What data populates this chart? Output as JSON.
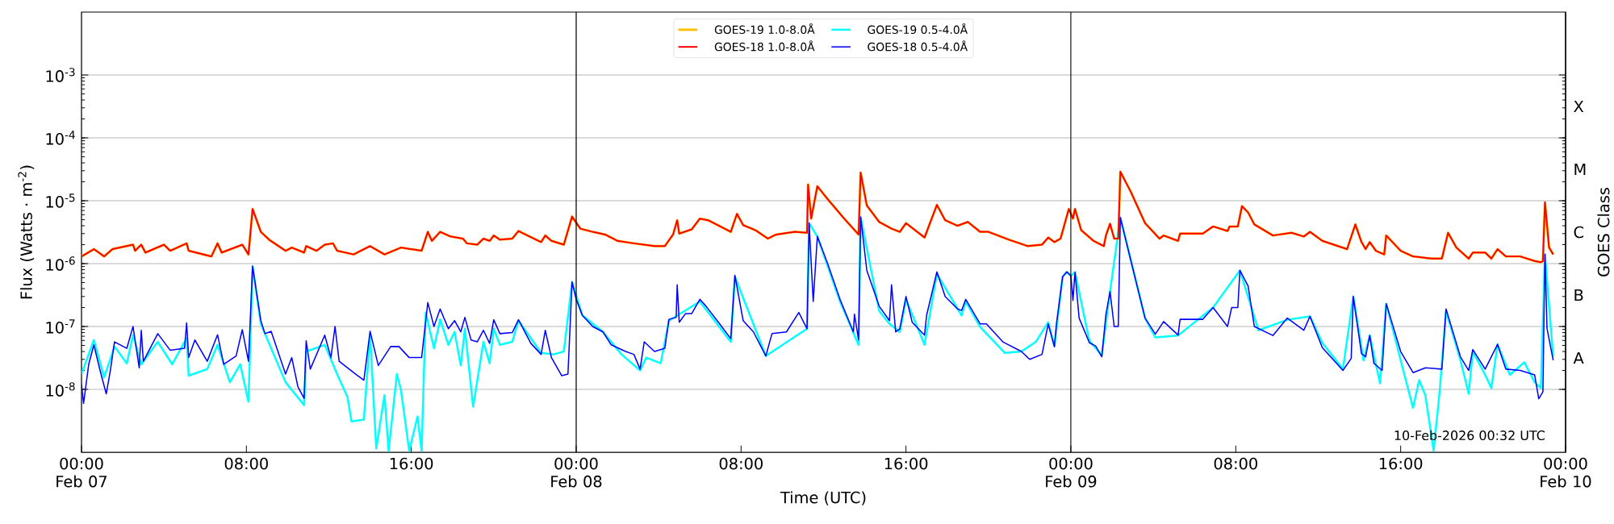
{
  "chart_data": {
    "type": "line",
    "xlabel": "Time (UTC)",
    "ylabel": "Flux (Watts · m$^{-2}$)",
    "y2label": "GOES Class",
    "log": true,
    "grid": "y",
    "legend": "top",
    "line_style": "solid",
    "marker": "none",
    "xlim": [
      "2026-02-07T00:00",
      "2026-02-10T00:00"
    ],
    "ylim": [
      1e-09,
      0.01
    ],
    "xticks": [
      {
        "value": "2026-02-07T00:00",
        "label": "00:00 Feb 07"
      },
      {
        "value": "2026-02-07T08:00",
        "label": "08:00"
      },
      {
        "value": "2026-02-07T16:00",
        "label": "16:00"
      },
      {
        "value": "2026-02-08T00:00",
        "label": "00:00 Feb 08"
      },
      {
        "value": "2026-02-08T08:00",
        "label": "08:00"
      },
      {
        "value": "2026-02-08T16:00",
        "label": "16:00"
      },
      {
        "value": "2026-02-09T00:00",
        "label": "00:00 Feb 09"
      },
      {
        "value": "2026-02-09T08:00",
        "label": "08:00"
      },
      {
        "value": "2026-02-09T16:00",
        "label": "16:00"
      },
      {
        "value": "2026-02-10T00:00",
        "label": "00:00 Feb 10"
      }
    ],
    "yticks": [
      {
        "value": 1e-08,
        "label": "10$^{-8}$"
      },
      {
        "value": 1e-07,
        "label": "10$^{-7}$"
      },
      {
        "value": 1e-06,
        "label": "10$^{-6}$"
      },
      {
        "value": 1e-05,
        "label": "10$^{-5}$"
      },
      {
        "value": 0.0001,
        "label": "10$^{-4}$"
      },
      {
        "value": 0.001,
        "label": "10$^{-3}$"
      }
    ],
    "ref_lines": [
      {
        "axis": "x",
        "value": "2026-02-08T00:00",
        "color": "#000000"
      },
      {
        "axis": "x",
        "value": "2026-02-09T00:00",
        "color": "#000000"
      }
    ],
    "annotations": [
      "10-Feb-2026 00:32 UTC"
    ],
    "y2_categories": [
      null,
      "X",
      "M",
      "C",
      "B",
      "A",
      null
    ],
    "x": [
      "2026-02-07T00:00",
      "2026-02-07T00:36",
      "2026-02-07T01:06",
      "2026-02-07T01:30",
      "2026-02-07T02:30",
      "2026-02-07T02:36",
      "2026-02-07T02:54",
      "2026-02-07T03:06",
      "2026-02-07T04:00",
      "2026-02-07T04:18",
      "2026-02-07T05:06",
      "2026-02-07T05:12",
      "2026-02-07T06:18",
      "2026-02-07T06:36",
      "2026-02-07T06:48",
      "2026-02-07T07:48",
      "2026-02-07T08:06",
      "2026-02-07T08:18",
      "2026-02-07T08:42",
      "2026-02-07T09:06",
      "2026-02-07T09:54",
      "2026-02-07T10:12",
      "2026-02-07T10:48",
      "2026-02-07T10:54",
      "2026-02-07T11:24",
      "2026-02-07T11:48",
      "2026-02-07T12:12",
      "2026-02-07T12:24",
      "2026-02-07T13:12",
      "2026-02-07T14:00",
      "2026-02-07T14:42",
      "2026-02-07T15:30",
      "2026-02-07T16:30",
      "2026-02-07T16:48",
      "2026-02-07T17:00",
      "2026-02-07T17:24",
      "2026-02-07T17:54",
      "2026-02-07T18:30",
      "2026-02-07T18:42",
      "2026-02-07T19:12",
      "2026-02-07T19:30",
      "2026-02-07T19:48",
      "2026-02-07T20:00",
      "2026-02-07T20:18",
      "2026-02-07T20:54",
      "2026-02-07T21:12",
      "2026-02-07T22:18",
      "2026-02-07T22:30",
      "2026-02-07T22:48",
      "2026-02-07T23:24",
      "2026-02-07T23:48",
      "2026-02-08T00:12",
      "2026-02-08T00:48",
      "2026-02-08T01:24",
      "2026-02-08T02:00",
      "2026-02-08T02:48",
      "2026-02-08T03:48",
      "2026-02-08T04:18",
      "2026-02-08T04:42",
      "2026-02-08T04:54",
      "2026-02-08T05:00",
      "2026-02-08T05:36",
      "2026-02-08T06:00",
      "2026-02-08T06:24",
      "2026-02-08T07:12",
      "2026-02-08T07:30",
      "2026-02-08T07:48",
      "2026-02-08T08:06",
      "2026-02-08T08:42",
      "2026-02-08T09:18",
      "2026-02-08T09:42",
      "2026-02-08T10:36",
      "2026-02-08T11:12",
      "2026-02-08T11:15",
      "2026-02-08T11:24",
      "2026-02-08T11:42",
      "2026-02-08T12:12",
      "2026-02-08T13:00",
      "2026-02-08T13:42",
      "2026-02-08T13:48",
      "2026-02-08T14:06",
      "2026-02-08T14:42",
      "2026-02-08T15:18",
      "2026-02-08T15:42",
      "2026-02-08T16:00",
      "2026-02-08T16:54",
      "2026-02-08T17:30",
      "2026-02-08T17:54",
      "2026-02-08T18:30",
      "2026-02-08T19:00",
      "2026-02-08T19:36",
      "2026-02-08T20:00",
      "2026-02-08T21:00",
      "2026-02-08T21:54",
      "2026-02-08T22:36",
      "2026-02-08T22:54",
      "2026-02-08T23:12",
      "2026-02-08T23:30",
      "2026-02-08T23:54",
      "2026-02-09T00:06",
      "2026-02-09T00:12",
      "2026-02-09T00:30",
      "2026-02-09T01:06",
      "2026-02-09T01:36",
      "2026-02-09T01:42",
      "2026-02-09T01:54",
      "2026-02-09T02:06",
      "2026-02-09T02:18",
      "2026-02-09T02:24",
      "2026-02-09T02:54",
      "2026-02-09T03:36",
      "2026-02-09T04:18",
      "2026-02-09T04:30",
      "2026-02-09T05:12",
      "2026-02-09T05:18",
      "2026-02-09T06:24",
      "2026-02-09T06:54",
      "2026-02-09T07:36",
      "2026-02-09T07:42",
      "2026-02-09T08:06",
      "2026-02-09T08:18",
      "2026-02-09T08:36",
      "2026-02-09T08:54",
      "2026-02-09T09:48",
      "2026-02-09T10:42",
      "2026-02-09T11:18",
      "2026-02-09T11:36",
      "2026-02-09T12:12",
      "2026-02-09T13:24",
      "2026-02-09T13:48",
      "2026-02-09T14:06",
      "2026-02-09T14:18",
      "2026-02-09T14:30",
      "2026-02-09T14:48",
      "2026-02-09T15:12",
      "2026-02-09T15:18",
      "2026-02-09T16:00",
      "2026-02-09T16:36",
      "2026-02-09T17:30",
      "2026-02-09T18:00",
      "2026-02-09T18:18",
      "2026-02-09T18:42",
      "2026-02-09T19:18",
      "2026-02-09T19:30",
      "2026-02-09T20:06",
      "2026-02-09T20:24",
      "2026-02-09T20:42",
      "2026-02-09T21:06",
      "2026-02-09T21:48",
      "2026-02-09T22:30",
      "2026-02-09T22:48",
      "2026-02-09T22:54",
      "2026-02-09T23:00",
      "2026-02-09T23:12",
      "2026-02-09T23:24"
    ],
    "series": [
      {
        "name": "GOES-19 1.0-8.0Å",
        "color": "#ffc000",
        "values": [
          1.3e-06,
          1.7e-06,
          1.3e-06,
          1.7e-06,
          2e-06,
          1.6e-06,
          2e-06,
          1.5e-06,
          2e-06,
          1.6e-06,
          2.1e-06,
          1.6e-06,
          1.3e-06,
          2.1e-06,
          1.5e-06,
          2e-06,
          1.4e-06,
          7.4e-06,
          3.2e-06,
          2.4e-06,
          1.6e-06,
          1.8e-06,
          1.5e-06,
          1.9e-06,
          1.6e-06,
          2e-06,
          2.1e-06,
          1.6e-06,
          1.4e-06,
          1.9e-06,
          1.4e-06,
          1.8e-06,
          1.6e-06,
          3.2e-06,
          2.3e-06,
          3.2e-06,
          2.7e-06,
          2.5e-06,
          2.1e-06,
          2e-06,
          2.5e-06,
          2.3e-06,
          2.8e-06,
          2.4e-06,
          2.5e-06,
          3.3e-06,
          2.2e-06,
          2.8e-06,
          2.3e-06,
          2e-06,
          5.6e-06,
          3.6e-06,
          3.2e-06,
          2.9e-06,
          2.3e-06,
          2.1e-06,
          1.9e-06,
          1.9e-06,
          2.9e-06,
          4.9e-06,
          3e-06,
          3.5e-06,
          5.2e-06,
          4.9e-06,
          3.6e-06,
          3.2e-06,
          6.2e-06,
          4.1e-06,
          3.4e-06,
          2.5e-06,
          2.9e-06,
          3.2e-06,
          3.1e-06,
          1.8e-05,
          5.2e-06,
          1.7e-05,
          1.06e-05,
          5.2e-06,
          2.9e-06,
          2.8e-05,
          8.4e-06,
          4.6e-06,
          3.6e-06,
          3.2e-06,
          4.4e-06,
          2.6e-06,
          8.6e-06,
          4.9e-06,
          4e-06,
          4.6e-06,
          3.2e-06,
          3.2e-06,
          2.4e-06,
          1.9e-06,
          2e-06,
          2.6e-06,
          2.2e-06,
          2.5e-06,
          7.4e-06,
          5.2e-06,
          7.4e-06,
          3.4e-06,
          2.3e-06,
          1.9e-06,
          2.8e-06,
          4.3e-06,
          2.5e-06,
          2.5e-06,
          2.9e-05,
          1.4e-05,
          4.4e-06,
          2.5e-06,
          2.8e-06,
          2.3e-06,
          3e-06,
          3e-06,
          3.9e-06,
          3.3e-06,
          3.9e-06,
          3.9e-06,
          8.2e-06,
          6.5e-06,
          4.2e-06,
          2.8e-06,
          3.1e-06,
          2.7e-06,
          3.2e-06,
          2.3e-06,
          1.7e-06,
          4.2e-06,
          2.2e-06,
          1.7e-06,
          2.2e-06,
          1.6e-06,
          1.4e-06,
          2.8e-06,
          1.6e-06,
          1.3e-06,
          1.2e-06,
          1.2e-06,
          3.1e-06,
          1.8e-06,
          1.2e-06,
          1.5e-06,
          1.5e-06,
          1.2e-06,
          1.7e-06,
          1.3e-06,
          1.3e-06,
          1.1e-06,
          1.05e-06,
          1.1e-06,
          9.4e-06,
          1.8e-06,
          1.4e-06
        ]
      },
      {
        "name": "GOES-19 0.5-4.0Å",
        "color": "#00ffff",
        "x": [
          "2026-02-07T00:00",
          "2026-02-07T00:36",
          "2026-02-07T01:06",
          "2026-02-07T01:36",
          "2026-02-07T02:12",
          "2026-02-07T02:30",
          "2026-02-07T02:54",
          "2026-02-07T03:42",
          "2026-02-07T04:24",
          "2026-02-07T05:06",
          "2026-02-07T05:12",
          "2026-02-07T06:06",
          "2026-02-07T06:36",
          "2026-02-07T07:12",
          "2026-02-07T07:42",
          "2026-02-07T08:06",
          "2026-02-07T08:18",
          "2026-02-07T08:42",
          "2026-02-07T09:54",
          "2026-02-07T10:48",
          "2026-02-07T10:54",
          "2026-02-07T11:48",
          "2026-02-07T12:24",
          "2026-02-07T12:54",
          "2026-02-07T13:06",
          "2026-02-07T13:42",
          "2026-02-07T14:00",
          "2026-02-07T14:18",
          "2026-02-07T14:42",
          "2026-02-07T14:54",
          "2026-02-07T15:18",
          "2026-02-07T15:30",
          "2026-02-07T15:54",
          "2026-02-07T16:18",
          "2026-02-07T16:30",
          "2026-02-07T16:42",
          "2026-02-07T17:06",
          "2026-02-07T17:24",
          "2026-02-07T17:48",
          "2026-02-07T18:06",
          "2026-02-07T18:24",
          "2026-02-07T18:36",
          "2026-02-07T19:00",
          "2026-02-07T19:30",
          "2026-02-07T19:48",
          "2026-02-07T20:00",
          "2026-02-07T20:18",
          "2026-02-07T20:54",
          "2026-02-07T21:12",
          "2026-02-07T22:18",
          "2026-02-07T22:54",
          "2026-02-07T23:24",
          "2026-02-07T23:48",
          "2026-02-08T00:18",
          "2026-02-08T01:18",
          "2026-02-08T02:12",
          "2026-02-08T03:06",
          "2026-02-08T03:24",
          "2026-02-08T04:06",
          "2026-02-08T04:30",
          "2026-02-08T06:00",
          "2026-02-08T07:30",
          "2026-02-08T07:42",
          "2026-02-08T09:12",
          "2026-02-08T11:12",
          "2026-02-08T11:18",
          "2026-02-08T11:42",
          "2026-02-08T12:48",
          "2026-02-08T13:42",
          "2026-02-08T13:48",
          "2026-02-08T14:42",
          "2026-02-08T15:12",
          "2026-02-08T15:42",
          "2026-02-08T16:00",
          "2026-02-08T16:54",
          "2026-02-08T17:30",
          "2026-02-08T18:42",
          "2026-02-08T18:54",
          "2026-02-08T19:36",
          "2026-02-08T20:48",
          "2026-02-08T21:36",
          "2026-02-08T22:18",
          "2026-02-08T22:54",
          "2026-02-08T23:12",
          "2026-02-08T23:36",
          "2026-02-08T23:48",
          "2026-02-09T00:00",
          "2026-02-09T00:12",
          "2026-02-09T00:54",
          "2026-02-09T01:30",
          "2026-02-09T01:54",
          "2026-02-09T02:24",
          "2026-02-09T03:36",
          "2026-02-09T04:06",
          "2026-02-09T05:12",
          "2026-02-09T06:54",
          "2026-02-09T08:12",
          "2026-02-09T09:06",
          "2026-02-09T10:30",
          "2026-02-09T11:36",
          "2026-02-09T12:12",
          "2026-02-09T13:12",
          "2026-02-09T13:42",
          "2026-02-09T14:12",
          "2026-02-09T14:30",
          "2026-02-09T15:00",
          "2026-02-09T15:18",
          "2026-02-09T16:00",
          "2026-02-09T16:36",
          "2026-02-09T16:54",
          "2026-02-09T17:12",
          "2026-02-09T17:36",
          "2026-02-09T17:54",
          "2026-02-09T18:12",
          "2026-02-09T18:54",
          "2026-02-09T19:18",
          "2026-02-09T19:30",
          "2026-02-09T20:06",
          "2026-02-09T20:24",
          "2026-02-09T20:42",
          "2026-02-09T21:18",
          "2026-02-09T22:00",
          "2026-02-09T22:30",
          "2026-02-09T22:48",
          "2026-02-09T23:00",
          "2026-02-09T23:24"
        ],
        "values": [
          1.75e-08,
          6.1e-08,
          1.55e-08,
          4.8e-08,
          2.6e-08,
          7.3e-08,
          2.5e-08,
          5.7e-08,
          2.5e-08,
          6.5e-08,
          1.65e-08,
          2.1e-08,
          5.1e-08,
          1.3e-08,
          2.5e-08,
          6.4e-09,
          9.1e-07,
          1.1e-07,
          1.3e-08,
          5.6e-09,
          4e-08,
          5.1e-08,
          1.75e-08,
          7.6e-09,
          3.1e-09,
          3.3e-09,
          7.3e-08,
          1.15e-09,
          8.1e-09,
          1.05e-09,
          1.75e-08,
          9.7e-09,
          1.05e-09,
          3.7e-09,
          1.05e-09,
          1.67e-07,
          4.5e-08,
          1.3e-07,
          5.1e-08,
          8.2e-08,
          2.4e-08,
          9.2e-08,
          5.3e-09,
          5.7e-08,
          2.6e-08,
          9.2e-08,
          5.1e-08,
          5.7e-08,
          1.24e-07,
          3.8e-08,
          3.6e-08,
          4e-08,
          5.1e-07,
          1.5e-07,
          8.2e-08,
          3.6e-08,
          2e-08,
          3.2e-08,
          2.6e-08,
          1.24e-07,
          2.5e-07,
          5.7e-08,
          6.2e-07,
          3.4e-08,
          9.2e-08,
          4.4e-06,
          2.7e-06,
          2.5e-07,
          5.1e-08,
          5.5e-06,
          1.77e-07,
          1.1e-07,
          8.2e-08,
          2.7e-07,
          5.1e-08,
          6.9e-07,
          1.5e-07,
          2.5e-07,
          9.8e-08,
          3.8e-08,
          4e-08,
          5.7e-08,
          1.17e-07,
          4.8e-08,
          6.2e-07,
          7.4e-07,
          6.4e-07,
          7.3e-07,
          5.9e-08,
          3.5e-08,
          3.6e-07,
          5.4e-06,
          1.36e-07,
          6.7e-08,
          7.2e-08,
          2e-07,
          7.8e-07,
          8.7e-08,
          1.28e-07,
          1.45e-07,
          5.5e-08,
          2.1e-08,
          3e-07,
          2.9e-08,
          7.2e-08,
          1.25e-08,
          2.3e-07,
          2.9e-08,
          5.1e-09,
          1.4e-08,
          8e-09,
          1.05e-09,
          1e-08,
          1.76e-07,
          2.9e-08,
          8.5e-09,
          4e-08,
          1.7e-08,
          1.05e-08,
          5.2e-08,
          1.7e-08,
          2.7e-08,
          1.3e-08,
          1.05e-08,
          1.4e-06,
          3.3e-08
        ]
      },
      {
        "name": "GOES-18 1.0-8.0Å",
        "color": "#ff0000",
        "values": [
          1.3e-06,
          1.7e-06,
          1.3e-06,
          1.7e-06,
          2e-06,
          1.6e-06,
          2e-06,
          1.5e-06,
          2e-06,
          1.6e-06,
          2.1e-06,
          1.6e-06,
          1.3e-06,
          2.1e-06,
          1.5e-06,
          2e-06,
          1.4e-06,
          7.4e-06,
          3.2e-06,
          2.4e-06,
          1.6e-06,
          1.8e-06,
          1.5e-06,
          1.9e-06,
          1.6e-06,
          2e-06,
          2.1e-06,
          1.6e-06,
          1.4e-06,
          1.9e-06,
          1.4e-06,
          1.8e-06,
          1.6e-06,
          3.2e-06,
          2.3e-06,
          3.2e-06,
          2.7e-06,
          2.5e-06,
          2.1e-06,
          2e-06,
          2.5e-06,
          2.3e-06,
          2.8e-06,
          2.4e-06,
          2.5e-06,
          3.3e-06,
          2.2e-06,
          2.8e-06,
          2.3e-06,
          2e-06,
          5.6e-06,
          3.6e-06,
          3.2e-06,
          2.9e-06,
          2.3e-06,
          2.1e-06,
          1.9e-06,
          1.9e-06,
          2.9e-06,
          4.9e-06,
          3e-06,
          3.5e-06,
          5.2e-06,
          4.9e-06,
          3.6e-06,
          3.2e-06,
          6.2e-06,
          4.1e-06,
          3.4e-06,
          2.5e-06,
          2.9e-06,
          3.2e-06,
          3.1e-06,
          1.8e-05,
          5.2e-06,
          1.7e-05,
          1.06e-05,
          5.2e-06,
          2.9e-06,
          2.8e-05,
          8.4e-06,
          4.6e-06,
          3.6e-06,
          3.2e-06,
          4.4e-06,
          2.6e-06,
          8.6e-06,
          4.9e-06,
          4e-06,
          4.6e-06,
          3.2e-06,
          3.2e-06,
          2.4e-06,
          1.9e-06,
          2e-06,
          2.6e-06,
          2.2e-06,
          2.5e-06,
          7.4e-06,
          5.2e-06,
          7.4e-06,
          3.4e-06,
          2.3e-06,
          1.9e-06,
          2.8e-06,
          4.3e-06,
          2.5e-06,
          2.5e-06,
          2.9e-05,
          1.4e-05,
          4.4e-06,
          2.5e-06,
          2.8e-06,
          2.3e-06,
          3e-06,
          3e-06,
          3.9e-06,
          3.3e-06,
          3.9e-06,
          3.9e-06,
          8.2e-06,
          6.5e-06,
          4.2e-06,
          2.8e-06,
          3.1e-06,
          2.7e-06,
          3.2e-06,
          2.3e-06,
          1.7e-06,
          4.2e-06,
          2.2e-06,
          1.7e-06,
          2.2e-06,
          1.6e-06,
          1.4e-06,
          2.8e-06,
          1.6e-06,
          1.3e-06,
          1.2e-06,
          1.2e-06,
          3.1e-06,
          1.8e-06,
          1.2e-06,
          1.5e-06,
          1.5e-06,
          1.2e-06,
          1.7e-06,
          1.3e-06,
          1.3e-06,
          1.1e-06,
          1.05e-06,
          1.1e-06,
          9.4e-06,
          1.8e-06,
          1.4e-06
        ]
      },
      {
        "name": "GOES-18 0.5-4.0Å",
        "color": "#0000ff",
        "x": [
          "2026-02-07T00:00",
          "2026-02-07T00:06",
          "2026-02-07T00:21",
          "2026-02-07T00:36",
          "2026-02-07T00:54",
          "2026-02-07T01:12",
          "2026-02-07T01:24",
          "2026-02-07T01:36",
          "2026-02-07T02:12",
          "2026-02-07T02:30",
          "2026-02-07T02:48",
          "2026-02-07T02:54",
          "2026-02-07T03:00",
          "2026-02-07T03:42",
          "2026-02-07T04:18",
          "2026-02-07T05:00",
          "2026-02-07T05:06",
          "2026-02-07T05:12",
          "2026-02-07T05:30",
          "2026-02-07T06:06",
          "2026-02-07T06:36",
          "2026-02-07T06:54",
          "2026-02-07T07:30",
          "2026-02-07T07:48",
          "2026-02-07T08:06",
          "2026-02-07T08:18",
          "2026-02-07T08:42",
          "2026-02-07T08:54",
          "2026-02-07T09:12",
          "2026-02-07T09:54",
          "2026-02-07T10:12",
          "2026-02-07T10:30",
          "2026-02-07T10:48",
          "2026-02-07T10:54",
          "2026-02-07T11:06",
          "2026-02-07T11:48",
          "2026-02-07T12:06",
          "2026-02-07T12:18",
          "2026-02-07T12:30",
          "2026-02-07T13:18",
          "2026-02-07T13:42",
          "2026-02-07T14:00",
          "2026-02-07T14:24",
          "2026-02-07T15:00",
          "2026-02-07T15:24",
          "2026-02-07T15:54",
          "2026-02-07T16:30",
          "2026-02-07T16:48",
          "2026-02-07T17:06",
          "2026-02-07T17:24",
          "2026-02-07T17:48",
          "2026-02-07T18:06",
          "2026-02-07T18:24",
          "2026-02-07T18:36",
          "2026-02-07T18:54",
          "2026-02-07T19:12",
          "2026-02-07T19:30",
          "2026-02-07T19:48",
          "2026-02-07T20:00",
          "2026-02-07T20:18",
          "2026-02-07T20:54",
          "2026-02-07T21:12",
          "2026-02-07T21:48",
          "2026-02-07T22:18",
          "2026-02-07T22:30",
          "2026-02-07T22:48",
          "2026-02-07T23:18",
          "2026-02-07T23:36",
          "2026-02-07T23:48",
          "2026-02-08T00:00",
          "2026-02-08T00:18",
          "2026-02-08T00:48",
          "2026-02-08T01:18",
          "2026-02-08T01:42",
          "2026-02-08T02:24",
          "2026-02-08T02:48",
          "2026-02-08T03:06",
          "2026-02-08T03:18",
          "2026-02-08T03:48",
          "2026-02-08T04:18",
          "2026-02-08T04:30",
          "2026-02-08T04:51",
          "2026-02-08T04:54",
          "2026-02-08T05:00",
          "2026-02-08T05:18",
          "2026-02-08T05:36",
          "2026-02-08T06:00",
          "2026-02-08T06:18",
          "2026-02-08T06:54",
          "2026-02-08T07:30",
          "2026-02-08T07:42",
          "2026-02-08T08:06",
          "2026-02-08T08:36",
          "2026-02-08T09:12",
          "2026-02-08T09:30",
          "2026-02-08T10:12",
          "2026-02-08T10:48",
          "2026-02-08T11:12",
          "2026-02-08T11:18",
          "2026-02-08T11:30",
          "2026-02-08T11:42",
          "2026-02-08T12:12",
          "2026-02-08T12:48",
          "2026-02-08T13:27",
          "2026-02-08T13:30",
          "2026-02-08T13:42",
          "2026-02-08T13:48",
          "2026-02-08T14:06",
          "2026-02-08T14:42",
          "2026-02-08T15:12",
          "2026-02-08T15:18",
          "2026-02-08T15:30",
          "2026-02-08T15:42",
          "2026-02-08T16:00",
          "2026-02-08T16:18",
          "2026-02-08T16:54",
          "2026-02-08T17:00",
          "2026-02-08T17:30",
          "2026-02-08T17:54",
          "2026-02-08T18:30",
          "2026-02-08T18:42",
          "2026-02-08T18:54",
          "2026-02-08T19:36",
          "2026-02-08T19:54",
          "2026-02-08T20:42",
          "2026-02-08T21:36",
          "2026-02-08T22:00",
          "2026-02-08T22:36",
          "2026-02-08T22:54",
          "2026-02-08T23:12",
          "2026-02-08T23:18",
          "2026-02-08T23:36",
          "2026-02-08T23:48",
          "2026-02-09T00:00",
          "2026-02-09T00:06",
          "2026-02-09T00:12",
          "2026-02-09T00:24",
          "2026-02-09T00:54",
          "2026-02-09T01:12",
          "2026-02-09T01:30",
          "2026-02-09T01:42",
          "2026-02-09T01:54",
          "2026-02-09T02:06",
          "2026-02-09T02:18",
          "2026-02-09T02:24",
          "2026-02-09T02:54",
          "2026-02-09T03:36",
          "2026-02-09T04:06",
          "2026-02-09T04:30",
          "2026-02-09T05:12",
          "2026-02-09T05:18",
          "2026-02-09T06:24",
          "2026-02-09T06:54",
          "2026-02-09T07:36",
          "2026-02-09T07:48",
          "2026-02-09T08:06",
          "2026-02-09T08:12",
          "2026-02-09T08:36",
          "2026-02-09T08:54",
          "2026-02-09T09:48",
          "2026-02-09T10:30",
          "2026-02-09T11:18",
          "2026-02-09T11:36",
          "2026-02-09T12:12",
          "2026-02-09T13:12",
          "2026-02-09T13:36",
          "2026-02-09T13:42",
          "2026-02-09T14:06",
          "2026-02-09T14:18",
          "2026-02-09T14:30",
          "2026-02-09T14:42",
          "2026-02-09T15:06",
          "2026-02-09T15:18",
          "2026-02-09T16:00",
          "2026-02-09T16:36",
          "2026-02-09T17:12",
          "2026-02-09T18:00",
          "2026-02-09T18:12",
          "2026-02-09T18:54",
          "2026-02-09T19:18",
          "2026-02-09T19:30",
          "2026-02-09T20:06",
          "2026-02-09T20:42",
          "2026-02-09T21:06",
          "2026-02-09T21:48",
          "2026-02-09T22:30",
          "2026-02-09T22:42",
          "2026-02-09T22:54",
          "2026-02-09T23:00",
          "2026-02-09T23:06",
          "2026-02-09T23:24"
        ],
        "values": [
          1.2e-08,
          6e-09,
          2.5e-08,
          5.1e-08,
          2e-08,
          8.5e-09,
          2e-08,
          5.7e-08,
          4.5e-08,
          1e-07,
          2.2e-08,
          8.7e-08,
          2.8e-08,
          7.7e-08,
          4.2e-08,
          4.5e-08,
          1.14e-07,
          3.2e-08,
          6.1e-08,
          2.8e-08,
          7.4e-08,
          2.5e-08,
          3.4e-08,
          8.9e-08,
          2.8e-08,
          9.1e-07,
          1.24e-07,
          7.7e-08,
          8.4e-08,
          1.75e-08,
          3.2e-08,
          1.1e-08,
          7.2e-09,
          5.9e-08,
          2.1e-08,
          7.3e-08,
          3.2e-08,
          1e-07,
          2.8e-08,
          1.75e-08,
          1.4e-08,
          8.4e-08,
          2.4e-08,
          4.8e-08,
          4.8e-08,
          3.2e-08,
          3.2e-08,
          2.4e-07,
          1e-07,
          1.9e-07,
          9.2e-08,
          1.24e-07,
          8.2e-08,
          1.4e-07,
          6.1e-08,
          5.7e-08,
          8.7e-08,
          5.4e-08,
          1.28e-07,
          7.7e-08,
          8e-08,
          1.28e-07,
          5.4e-08,
          3.6e-08,
          8.7e-08,
          3.2e-08,
          1.65e-08,
          1.75e-08,
          5.1e-07,
          2.7e-07,
          1.5e-07,
          1e-07,
          8.2e-08,
          5.1e-08,
          4e-08,
          3.6e-08,
          2.1e-08,
          5.7e-08,
          4e-08,
          4.5e-08,
          1.3e-07,
          1.4e-07,
          4.6e-07,
          1.17e-07,
          1.6e-07,
          1.6e-07,
          2.7e-07,
          2.1e-07,
          1.17e-07,
          6.4e-08,
          6.5e-07,
          1.24e-07,
          8.2e-08,
          3.4e-08,
          7.7e-08,
          8.2e-08,
          1.67e-07,
          9.2e-08,
          4.4e-06,
          2.5e-07,
          2.7e-06,
          1e-06,
          2.7e-07,
          8.2e-08,
          1.57e-07,
          6.1e-08,
          5.5e-06,
          7.8e-07,
          2.1e-07,
          1.24e-07,
          4.6e-07,
          8.2e-08,
          9.2e-08,
          3e-07,
          1.17e-07,
          7.3e-08,
          1.5e-07,
          7.4e-07,
          3e-07,
          1.9e-07,
          1.8e-07,
          2.7e-07,
          1.1e-07,
          1.1e-07,
          5.7e-08,
          4e-08,
          3e-08,
          3.6e-08,
          1.1e-07,
          4.8e-08,
          1.1e-07,
          6.2e-07,
          7.4e-07,
          6.4e-07,
          2.6e-07,
          7.3e-07,
          1.36e-07,
          5.5e-08,
          4.9e-08,
          3.3e-08,
          1.55e-07,
          3.6e-07,
          1e-07,
          1e-07,
          5.4e-06,
          1.15e-06,
          1.36e-07,
          7.6e-08,
          1.2e-07,
          7.3e-08,
          1.3e-07,
          1.3e-07,
          2e-07,
          1e-07,
          2e-07,
          2e-07,
          7.8e-07,
          4.4e-07,
          1e-07,
          7.2e-08,
          1.36e-07,
          8.7e-08,
          1.45e-07,
          4.6e-08,
          2e-08,
          3.1e-08,
          3e-07,
          3.7e-08,
          3.3e-08,
          7.2e-08,
          2.6e-08,
          2e-08,
          2.3e-07,
          4e-08,
          1.85e-08,
          2.2e-08,
          2.1e-08,
          1.9e-07,
          3.3e-08,
          2e-08,
          4.3e-08,
          2.1e-08,
          5.2e-08,
          2.1e-08,
          2e-08,
          1.7e-08,
          7.1e-09,
          9.1e-09,
          1.4e-06,
          9.3e-08,
          2.9e-08
        ]
      }
    ]
  }
}
